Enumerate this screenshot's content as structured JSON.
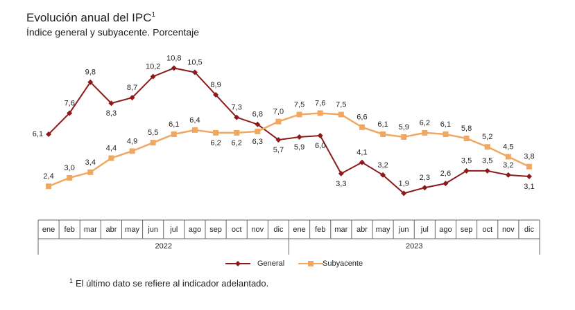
{
  "chart_data": {
    "type": "line",
    "title": "Evolución anual del IPC",
    "title_marker": "1",
    "subtitle": "Índice general y subyacente. Porcentaje",
    "categories": [
      "ene",
      "feb",
      "mar",
      "abr",
      "may",
      "jun",
      "jul",
      "ago",
      "sep",
      "oct",
      "nov",
      "dic",
      "ene",
      "feb",
      "mar",
      "abr",
      "may",
      "jun",
      "jul",
      "ago",
      "sep",
      "oct",
      "nov",
      "dic"
    ],
    "category_groups": [
      "2022",
      "2023"
    ],
    "ylim": [
      0,
      12
    ],
    "series": [
      {
        "name": "General",
        "color": "#8b1a1a",
        "marker": "diamond",
        "values": [
          6.1,
          7.6,
          9.8,
          8.3,
          8.7,
          10.2,
          10.8,
          10.5,
          8.9,
          7.3,
          6.8,
          5.7,
          5.9,
          6.0,
          3.3,
          4.1,
          3.2,
          1.9,
          2.3,
          2.6,
          3.5,
          3.5,
          3.2,
          3.1
        ],
        "value_labels": [
          "6,1",
          "7,6",
          "9,8",
          "8,3",
          "8,7",
          "10,2",
          "10,8",
          "10,5",
          "8,9",
          "7,3",
          "6,8",
          "5,7",
          "5,9",
          "6,0",
          "3,3",
          "4,1",
          "3,2",
          "1,9",
          "2,3",
          "2,6",
          "3,5",
          "3,5",
          "3,2",
          "3,1"
        ]
      },
      {
        "name": "Subyacente",
        "color": "#f0a860",
        "marker": "square",
        "values": [
          2.4,
          3.0,
          3.4,
          4.4,
          4.9,
          5.5,
          6.1,
          6.4,
          6.2,
          6.2,
          6.3,
          7.0,
          7.5,
          7.6,
          7.5,
          6.6,
          6.1,
          5.9,
          6.2,
          6.1,
          5.8,
          5.2,
          4.5,
          3.8
        ],
        "value_labels": [
          "2,4",
          "3,0",
          "3,4",
          "4,4",
          "4,9",
          "5,5",
          "6,1",
          "6,4",
          "6,2",
          "6,2",
          "6,3",
          "7,0",
          "7,5",
          "7,6",
          "7,5",
          "6,6",
          "6,1",
          "5,9",
          "6,2",
          "6,1",
          "5,8",
          "5,2",
          "4,5",
          "3,8"
        ]
      }
    ],
    "footnote": {
      "marker": "1",
      "text": "El último dato se refiere al indicador adelantado."
    }
  }
}
